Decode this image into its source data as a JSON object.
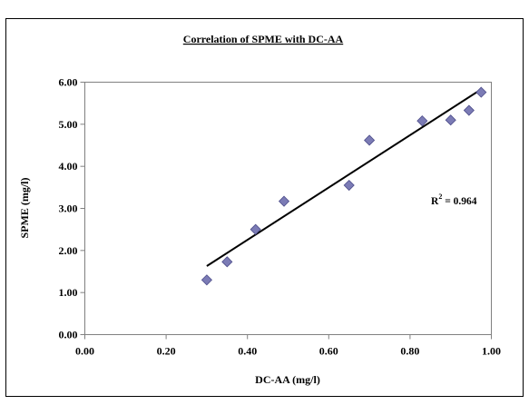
{
  "chart_data": {
    "type": "scatter",
    "title": "Correlation of SPME with DC-AA",
    "xlabel": "DC-AA (mg/l)",
    "ylabel": "SPME (mg/l)",
    "xlim": [
      0,
      1
    ],
    "ylim": [
      0,
      6
    ],
    "x_ticks": [
      "0.00",
      "0.20",
      "0.40",
      "0.60",
      "0.80",
      "1.00"
    ],
    "y_ticks": [
      "0.00",
      "1.00",
      "2.00",
      "3.00",
      "4.00",
      "5.00",
      "6.00"
    ],
    "grid": false,
    "legend": "none",
    "points": [
      {
        "x": 0.3,
        "y": 1.3
      },
      {
        "x": 0.35,
        "y": 1.73
      },
      {
        "x": 0.42,
        "y": 2.5
      },
      {
        "x": 0.49,
        "y": 3.17
      },
      {
        "x": 0.65,
        "y": 3.55
      },
      {
        "x": 0.7,
        "y": 4.62
      },
      {
        "x": 0.83,
        "y": 5.08
      },
      {
        "x": 0.9,
        "y": 5.1
      },
      {
        "x": 0.945,
        "y": 5.33
      },
      {
        "x": 0.975,
        "y": 5.76
      }
    ],
    "trendline": {
      "x_start": 0.3,
      "y_start": 1.63,
      "x_end": 0.975,
      "y_end": 5.83
    },
    "annotation": {
      "base": "R",
      "exponent": "2",
      "rest": " = 0.964"
    },
    "marker_color": "#7B7BB5",
    "marker_stroke": "#4D4D8A",
    "line_color": "#000000"
  }
}
